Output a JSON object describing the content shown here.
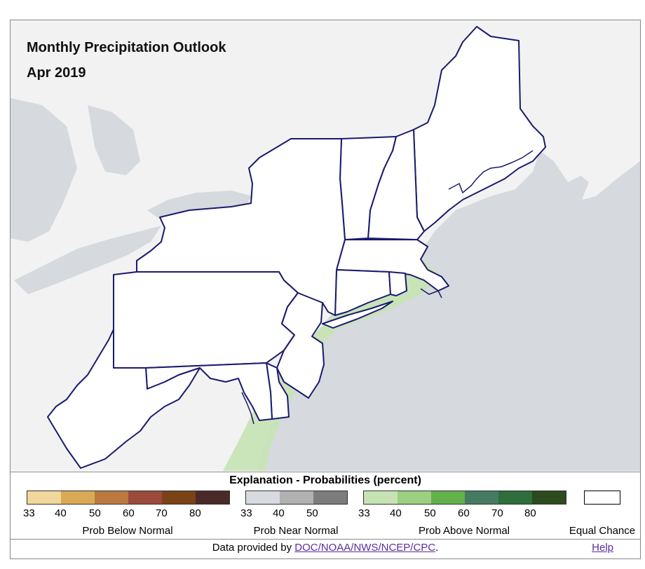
{
  "title": "Monthly Precipitation Outlook",
  "subtitle": "Apr 2019",
  "legend": {
    "heading": "Explanation - Probabilities (percent)",
    "below": {
      "label": "Prob Below Normal",
      "colors": [
        "#f0d79b",
        "#d9aa55",
        "#b9793f",
        "#9c4a3c",
        "#7a4315",
        "#4a2a28"
      ],
      "ticks": [
        "33",
        "40",
        "50",
        "60",
        "70",
        "80"
      ]
    },
    "near": {
      "label": "Prob Near Normal",
      "colors": [
        "#d7dbe0",
        "#b1b1b1",
        "#7c7c7c"
      ],
      "ticks": [
        "33",
        "40",
        "50"
      ]
    },
    "above": {
      "label": "Prob Above Normal",
      "colors": [
        "#c7e3b4",
        "#9ccf82",
        "#62b14a",
        "#477a63",
        "#2f6d3d",
        "#2c4a1d"
      ],
      "ticks": [
        "33",
        "40",
        "50",
        "60",
        "70",
        "80"
      ]
    },
    "equal_label": "Equal Chance"
  },
  "credit": {
    "prefix": "Data provided by ",
    "link": "DOC/NOAA/NWS/NCEP/CPC",
    "suffix": "."
  },
  "help": "Help",
  "colors": {
    "ocean": "#d6d9dd",
    "land": "#f2f2f2",
    "states": "#ffffff",
    "border": "#1a1a6e",
    "above_33": "#c7e3b4"
  }
}
